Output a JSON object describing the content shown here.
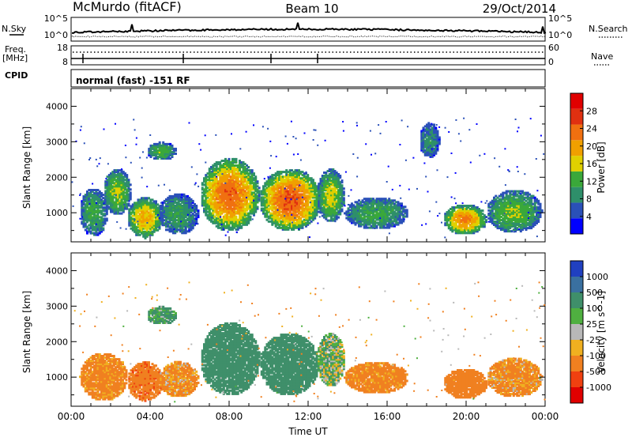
{
  "header": {
    "station": "McMurdo (fitACF)",
    "beam": "Beam 10",
    "date": "29/Oct/2014"
  },
  "status_panel": {
    "nsky_label": "N.Sky",
    "nsky_ticks": [
      "10^5",
      "10^0"
    ],
    "nsearch_label": "N.Search",
    "nsearch_ticks": [
      "10^5",
      "10^0"
    ],
    "freq_label": "Freq.",
    "freq_unit": "[MHz]",
    "freq_ticks": [
      "18",
      "8"
    ],
    "nave_label": "Nave",
    "nave_ticks": [
      "60",
      "0"
    ],
    "cpid_label": "CPID",
    "cpid_value": "normal (fast) -151 RF"
  },
  "chart_data": [
    {
      "type": "heatmap",
      "name": "power",
      "ylabel": "Slant Range [km]",
      "xlabel": "",
      "yticks": [
        "1000",
        "2000",
        "3000",
        "4000"
      ],
      "ylim": [
        180,
        4500
      ],
      "xlim": [
        0,
        24
      ],
      "colorbar": {
        "label": "Power [dB]",
        "ticks": [
          "4",
          "8",
          "12",
          "16",
          "20",
          "24",
          "28"
        ],
        "range": [
          0,
          32
        ],
        "colors": [
          "#0000ff",
          "#2a50b8",
          "#2e8f6a",
          "#3aa83a",
          "#e0d000",
          "#f0a000",
          "#f07010",
          "#e03010",
          "#e00000"
        ]
      },
      "blobs": [
        {
          "t0": 0.4,
          "t1": 1.8,
          "r0": 300,
          "r1": 1650,
          "level": 10
        },
        {
          "t0": 1.6,
          "t1": 3.0,
          "r0": 900,
          "r1": 2200,
          "level": 13
        },
        {
          "t0": 2.8,
          "t1": 4.6,
          "r0": 250,
          "r1": 1400,
          "level": 17
        },
        {
          "t0": 3.8,
          "t1": 5.3,
          "r0": 2450,
          "r1": 2950,
          "level": 11
        },
        {
          "t0": 4.4,
          "t1": 6.4,
          "r0": 350,
          "r1": 1500,
          "level": 9
        },
        {
          "t0": 6.5,
          "t1": 9.5,
          "r0": 450,
          "r1": 2500,
          "level": 22
        },
        {
          "t0": 9.5,
          "t1": 12.6,
          "r0": 450,
          "r1": 2200,
          "level": 23
        },
        {
          "t0": 12.4,
          "t1": 13.8,
          "r0": 700,
          "r1": 2200,
          "level": 14
        },
        {
          "t0": 13.8,
          "t1": 17.0,
          "r0": 500,
          "r1": 1400,
          "level": 10
        },
        {
          "t0": 18.8,
          "t1": 21.0,
          "r0": 350,
          "r1": 1200,
          "level": 20
        },
        {
          "t0": 21.0,
          "t1": 23.8,
          "r0": 400,
          "r1": 1600,
          "level": 12
        },
        {
          "t0": 17.6,
          "t1": 18.6,
          "r0": 2500,
          "r1": 3500,
          "level": 7
        }
      ]
    },
    {
      "type": "heatmap",
      "name": "velocity",
      "ylabel": "Slant Range [km]",
      "xlabel": "Time UT",
      "xticks": [
        "00:00",
        "04:00",
        "08:00",
        "12:00",
        "16:00",
        "20:00",
        "00:00"
      ],
      "yticks": [
        "1000",
        "2000",
        "3000",
        "4000"
      ],
      "ylim": [
        180,
        4500
      ],
      "xlim": [
        0,
        24
      ],
      "colorbar": {
        "label": "Velocity [m s^-1]",
        "ticks": [
          "1000",
          "500",
          "100",
          "25",
          "-25",
          "-100",
          "-500",
          "-1000"
        ],
        "colors": [
          "#2040c0",
          "#3a70a0",
          "#3f8f6a",
          "#4fb040",
          "#b8b8b8",
          "#f0b020",
          "#f08020",
          "#f04010",
          "#e00000"
        ]
      },
      "blobs": [
        {
          "t0": 0.4,
          "t1": 2.8,
          "r0": 300,
          "r1": 1650,
          "v": -200
        },
        {
          "t0": 2.8,
          "t1": 4.6,
          "r0": 300,
          "r1": 1400,
          "v": -400
        },
        {
          "t0": 3.8,
          "t1": 5.3,
          "r0": 2450,
          "r1": 2950,
          "v": 150
        },
        {
          "t0": 4.4,
          "t1": 6.4,
          "r0": 400,
          "r1": 1400,
          "v": -150
        },
        {
          "t0": 6.5,
          "t1": 9.5,
          "r0": 450,
          "r1": 2500,
          "v": 300
        },
        {
          "t0": 9.5,
          "t1": 12.5,
          "r0": 450,
          "r1": 2200,
          "v": 250
        },
        {
          "t0": 12.4,
          "t1": 13.8,
          "r0": 700,
          "r1": 2200,
          "v": 60
        },
        {
          "t0": 13.8,
          "t1": 17.0,
          "r0": 500,
          "r1": 1400,
          "v": -200
        },
        {
          "t0": 18.8,
          "t1": 21.0,
          "r0": 350,
          "r1": 1200,
          "v": -250
        },
        {
          "t0": 21.0,
          "t1": 23.8,
          "r0": 400,
          "r1": 1500,
          "v": -150
        }
      ]
    }
  ]
}
